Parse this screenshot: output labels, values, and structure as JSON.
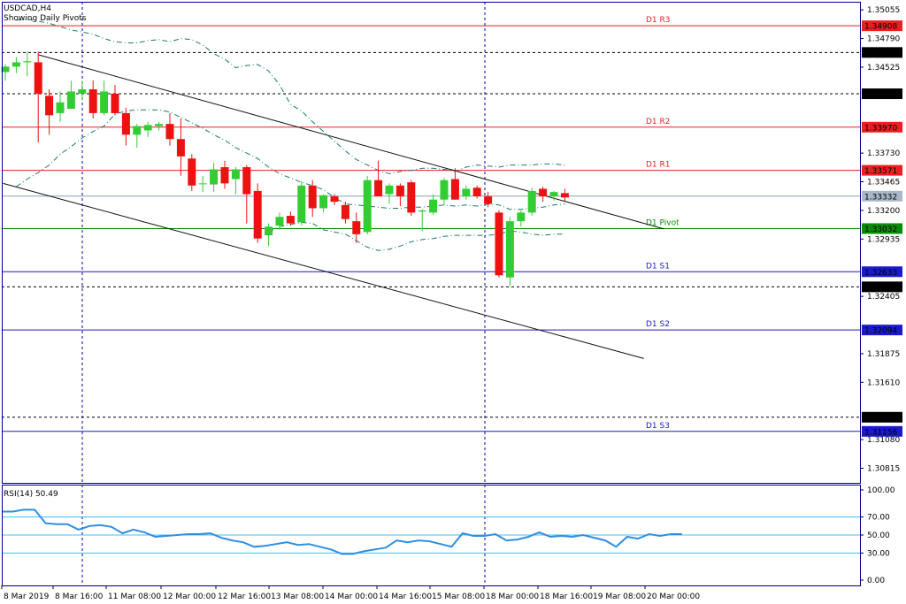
{
  "header": {
    "symbol": "USDCAD,H4",
    "subtitle": "Showing Daily Pivots"
  },
  "colors": {
    "up": "#33cc33",
    "down": "#ee1111",
    "frame": "#000080",
    "resistance": "#e82020",
    "support": "#1a1acc",
    "pivot": "#0a8a0a",
    "ma": "#1b7a6a",
    "rsi_line": "#2f8fdf",
    "rsi_level": "#40c0ff",
    "vline": "#0000aa"
  },
  "chart_data": [
    {
      "type": "candlestick",
      "title": "USDCAD,H4",
      "ylim": [
        1.3068,
        1.3513
      ],
      "y_ticks": [
        "1.35055",
        "1.34790",
        "1.34525",
        "1.33730",
        "1.33465",
        "1.33200",
        "1.32935",
        "1.32405",
        "1.31875",
        "1.31610",
        "1.31080",
        "1.30815"
      ],
      "levels": [
        {
          "name": "D1 R3",
          "value": 1.34908,
          "label": "1.34908",
          "kind": "resistance"
        },
        {
          "name": "D1 R2",
          "value": 1.3397,
          "label": "1.33970",
          "kind": "resistance"
        },
        {
          "name": "D1 R1",
          "value": 1.33571,
          "label": "1.33571",
          "kind": "resistance"
        },
        {
          "name": "D1 Pivot",
          "value": 1.33032,
          "label": "1.33032",
          "kind": "pivot"
        },
        {
          "name": "D1 S1",
          "value": 1.32633,
          "label": "1.32633",
          "kind": "support"
        },
        {
          "name": "D1 S2",
          "value": 1.32094,
          "label": "1.32094",
          "kind": "support"
        },
        {
          "name": "D1 S3",
          "value": 1.31156,
          "label": "1.31156",
          "kind": "support"
        }
      ],
      "dotted_levels": [
        {
          "value": 1.34661,
          "label": "1.34661"
        },
        {
          "value": 1.34279,
          "label": "1.34279"
        },
        {
          "value": 1.32493,
          "label": "1.32493"
        },
        {
          "value": 1.31287,
          "label": "1.31287"
        }
      ],
      "current_price": {
        "value": 1.33332,
        "label": "1.33332"
      },
      "x_labels": [
        "8 Mar 2019",
        "8 Mar 16:00",
        "11 Mar 08:00",
        "12 Mar 00:00",
        "12 Mar 16:00",
        "13 Mar 08:00",
        "14 Mar 00:00",
        "14 Mar 16:00",
        "15 Mar 08:00",
        "18 Mar 00:00",
        "18 Mar 16:00",
        "19 Mar 08:00",
        "20 Mar 00:00"
      ],
      "candles": [
        {
          "o": 1.3448,
          "h": 1.3455,
          "l": 1.344,
          "c": 1.3453
        },
        {
          "o": 1.3453,
          "h": 1.3462,
          "l": 1.3447,
          "c": 1.3457
        },
        {
          "o": 1.3457,
          "h": 1.3467,
          "l": 1.3444,
          "c": 1.3458
        },
        {
          "o": 1.3457,
          "h": 1.3467,
          "l": 1.3383,
          "c": 1.3428
        },
        {
          "o": 1.3426,
          "h": 1.3432,
          "l": 1.339,
          "c": 1.3408
        },
        {
          "o": 1.341,
          "h": 1.343,
          "l": 1.3402,
          "c": 1.342
        },
        {
          "o": 1.3414,
          "h": 1.344,
          "l": 1.3414,
          "c": 1.343
        },
        {
          "o": 1.3428,
          "h": 1.344,
          "l": 1.3422,
          "c": 1.3432
        },
        {
          "o": 1.3432,
          "h": 1.344,
          "l": 1.3405,
          "c": 1.341
        },
        {
          "o": 1.341,
          "h": 1.344,
          "l": 1.3408,
          "c": 1.343
        },
        {
          "o": 1.3428,
          "h": 1.3436,
          "l": 1.3408,
          "c": 1.341
        },
        {
          "o": 1.341,
          "h": 1.3415,
          "l": 1.338,
          "c": 1.339
        },
        {
          "o": 1.339,
          "h": 1.34,
          "l": 1.3378,
          "c": 1.3398
        },
        {
          "o": 1.3394,
          "h": 1.3402,
          "l": 1.3388,
          "c": 1.3399
        },
        {
          "o": 1.3398,
          "h": 1.3402,
          "l": 1.3394,
          "c": 1.34
        },
        {
          "o": 1.34,
          "h": 1.341,
          "l": 1.338,
          "c": 1.3386
        },
        {
          "o": 1.3386,
          "h": 1.3405,
          "l": 1.3352,
          "c": 1.337
        },
        {
          "o": 1.3368,
          "h": 1.3372,
          "l": 1.3338,
          "c": 1.3343
        },
        {
          "o": 1.3345,
          "h": 1.3352,
          "l": 1.3337,
          "c": 1.3345
        },
        {
          "o": 1.3344,
          "h": 1.3364,
          "l": 1.3337,
          "c": 1.3358
        },
        {
          "o": 1.336,
          "h": 1.3366,
          "l": 1.334,
          "c": 1.3345
        },
        {
          "o": 1.3349,
          "h": 1.336,
          "l": 1.3335,
          "c": 1.3358
        },
        {
          "o": 1.336,
          "h": 1.3362,
          "l": 1.3308,
          "c": 1.3335
        },
        {
          "o": 1.3338,
          "h": 1.3345,
          "l": 1.329,
          "c": 1.3294
        },
        {
          "o": 1.3297,
          "h": 1.3308,
          "l": 1.3287,
          "c": 1.3305
        },
        {
          "o": 1.3306,
          "h": 1.3318,
          "l": 1.3302,
          "c": 1.3314
        },
        {
          "o": 1.3315,
          "h": 1.3319,
          "l": 1.3306,
          "c": 1.3308
        },
        {
          "o": 1.3309,
          "h": 1.3347,
          "l": 1.3306,
          "c": 1.3343
        },
        {
          "o": 1.3343,
          "h": 1.3348,
          "l": 1.3314,
          "c": 1.3322
        },
        {
          "o": 1.3322,
          "h": 1.3335,
          "l": 1.3318,
          "c": 1.3334
        },
        {
          "o": 1.3333,
          "h": 1.3335,
          "l": 1.3325,
          "c": 1.3328
        },
        {
          "o": 1.3325,
          "h": 1.3328,
          "l": 1.3308,
          "c": 1.3312
        },
        {
          "o": 1.331,
          "h": 1.3318,
          "l": 1.329,
          "c": 1.3298
        },
        {
          "o": 1.33,
          "h": 1.3352,
          "l": 1.3298,
          "c": 1.3348
        },
        {
          "o": 1.3348,
          "h": 1.3366,
          "l": 1.3333,
          "c": 1.3333
        },
        {
          "o": 1.3335,
          "h": 1.3345,
          "l": 1.3326,
          "c": 1.3343
        },
        {
          "o": 1.3343,
          "h": 1.3345,
          "l": 1.3324,
          "c": 1.3333
        },
        {
          "o": 1.3346,
          "h": 1.3348,
          "l": 1.3315,
          "c": 1.3318
        },
        {
          "o": 1.3319,
          "h": 1.3321,
          "l": 1.3301,
          "c": 1.332
        },
        {
          "o": 1.3318,
          "h": 1.3335,
          "l": 1.3316,
          "c": 1.333
        },
        {
          "o": 1.333,
          "h": 1.335,
          "l": 1.3325,
          "c": 1.3348
        },
        {
          "o": 1.3349,
          "h": 1.3359,
          "l": 1.333,
          "c": 1.333
        },
        {
          "o": 1.3333,
          "h": 1.3343,
          "l": 1.333,
          "c": 1.334
        },
        {
          "o": 1.3341,
          "h": 1.3343,
          "l": 1.3331,
          "c": 1.3333
        },
        {
          "o": 1.3333,
          "h": 1.3337,
          "l": 1.3323,
          "c": 1.3326
        },
        {
          "o": 1.3318,
          "h": 1.332,
          "l": 1.3258,
          "c": 1.326
        },
        {
          "o": 1.3258,
          "h": 1.3314,
          "l": 1.325,
          "c": 1.331
        },
        {
          "o": 1.331,
          "h": 1.332,
          "l": 1.3305,
          "c": 1.3318
        },
        {
          "o": 1.3318,
          "h": 1.3341,
          "l": 1.3315,
          "c": 1.3338
        },
        {
          "o": 1.334,
          "h": 1.3342,
          "l": 1.3328,
          "c": 1.3333
        },
        {
          "o": 1.3333,
          "h": 1.3338,
          "l": 1.3329,
          "c": 1.3337
        },
        {
          "o": 1.3336,
          "h": 1.334,
          "l": 1.3328,
          "c": 1.3332
        }
      ],
      "channel_lines": [
        {
          "from": [
            3,
            1.3464
          ],
          "to": [
            60,
            1.3303
          ]
        },
        {
          "from": [
            -0.2,
            1.3345
          ],
          "to": [
            58.2,
            1.3183
          ]
        }
      ],
      "envelopes": {
        "upper": [
          [
            1,
            1.3496
          ],
          [
            2,
            1.3497
          ],
          [
            3,
            1.3495
          ],
          [
            4,
            1.3493
          ],
          [
            5,
            1.349
          ],
          [
            6,
            1.3487
          ],
          [
            7,
            1.3485
          ],
          [
            8,
            1.3483
          ],
          [
            9,
            1.3479
          ],
          [
            10,
            1.3476
          ],
          [
            11,
            1.3475
          ],
          [
            12,
            1.3475
          ],
          [
            13,
            1.3477
          ],
          [
            14,
            1.3478
          ],
          [
            15,
            1.3476
          ],
          [
            16,
            1.3479
          ],
          [
            17,
            1.3478
          ],
          [
            18,
            1.3473
          ],
          [
            19,
            1.3465
          ],
          [
            20,
            1.346
          ],
          [
            21,
            1.3452
          ],
          [
            22,
            1.3454
          ],
          [
            23,
            1.3455
          ],
          [
            24,
            1.3449
          ],
          [
            25,
            1.3436
          ],
          [
            26,
            1.3418
          ],
          [
            27,
            1.3412
          ],
          [
            28,
            1.3402
          ],
          [
            29,
            1.3393
          ],
          [
            30,
            1.3384
          ],
          [
            31,
            1.3375
          ],
          [
            32,
            1.3367
          ],
          [
            33,
            1.3362
          ],
          [
            34,
            1.3357
          ],
          [
            35,
            1.3354
          ],
          [
            36,
            1.3356
          ],
          [
            37,
            1.3357
          ],
          [
            38,
            1.3359
          ],
          [
            39,
            1.3359
          ],
          [
            40,
            1.3358
          ],
          [
            41,
            1.3356
          ],
          [
            42,
            1.336
          ],
          [
            43,
            1.3362
          ],
          [
            44,
            1.3361
          ],
          [
            45,
            1.336
          ],
          [
            46,
            1.3362
          ],
          [
            47,
            1.3362
          ],
          [
            48,
            1.3362
          ],
          [
            49,
            1.3363
          ],
          [
            50,
            1.3363
          ],
          [
            51,
            1.3362
          ]
        ],
        "middle": [
          [
            1,
            1.3342
          ],
          [
            2,
            1.3349
          ],
          [
            3,
            1.3355
          ],
          [
            4,
            1.3362
          ],
          [
            5,
            1.3372
          ],
          [
            6,
            1.3379
          ],
          [
            7,
            1.3387
          ],
          [
            8,
            1.3393
          ],
          [
            9,
            1.3398
          ],
          [
            10,
            1.3409
          ],
          [
            11,
            1.3412
          ],
          [
            12,
            1.3413
          ],
          [
            13,
            1.3413
          ],
          [
            14,
            1.3413
          ],
          [
            15,
            1.3411
          ],
          [
            16,
            1.3406
          ],
          [
            17,
            1.3401
          ],
          [
            18,
            1.3396
          ],
          [
            19,
            1.339
          ],
          [
            20,
            1.3385
          ],
          [
            21,
            1.3378
          ],
          [
            22,
            1.3373
          ],
          [
            23,
            1.3368
          ],
          [
            24,
            1.336
          ],
          [
            25,
            1.3354
          ],
          [
            26,
            1.335
          ],
          [
            27,
            1.3346
          ],
          [
            28,
            1.3343
          ],
          [
            29,
            1.3339
          ],
          [
            30,
            1.3332
          ],
          [
            31,
            1.3326
          ],
          [
            32,
            1.3325
          ],
          [
            33,
            1.3324
          ],
          [
            34,
            1.3323
          ],
          [
            35,
            1.3322
          ],
          [
            36,
            1.3322
          ],
          [
            37,
            1.3323
          ],
          [
            38,
            1.3323
          ],
          [
            39,
            1.3324
          ],
          [
            40,
            1.3325
          ],
          [
            41,
            1.3324
          ],
          [
            42,
            1.3325
          ],
          [
            43,
            1.3324
          ],
          [
            44,
            1.3326
          ],
          [
            45,
            1.3325
          ],
          [
            46,
            1.3321
          ],
          [
            47,
            1.3321
          ],
          [
            48,
            1.3322
          ],
          [
            49,
            1.3323
          ],
          [
            50,
            1.3325
          ],
          [
            51,
            1.3326
          ]
        ],
        "lower": [
          [
            24,
            1.33
          ],
          [
            25,
            1.3305
          ],
          [
            26,
            1.3307
          ],
          [
            27,
            1.3309
          ],
          [
            28,
            1.3308
          ],
          [
            29,
            1.3302
          ],
          [
            30,
            1.33
          ],
          [
            31,
            1.3298
          ],
          [
            32,
            1.3292
          ],
          [
            33,
            1.3286
          ],
          [
            34,
            1.3283
          ],
          [
            35,
            1.3284
          ],
          [
            36,
            1.3287
          ],
          [
            37,
            1.3291
          ],
          [
            38,
            1.3293
          ],
          [
            39,
            1.3294
          ],
          [
            40,
            1.3296
          ],
          [
            41,
            1.3297
          ],
          [
            42,
            1.3297
          ],
          [
            43,
            1.3297
          ],
          [
            44,
            1.3297
          ],
          [
            45,
            1.3298
          ],
          [
            46,
            1.3301
          ],
          [
            47,
            1.33
          ],
          [
            48,
            1.3298
          ],
          [
            49,
            1.3297
          ],
          [
            50,
            1.3298
          ],
          [
            51,
            1.3298
          ]
        ]
      }
    },
    {
      "type": "line",
      "title": "RSI(14) 50.49",
      "ylim": [
        0,
        100
      ],
      "y_ticks": [
        "100.00",
        "70.00",
        "50.00",
        "30.00",
        "0.00"
      ],
      "levels": [
        70,
        50,
        30
      ],
      "series": [
        {
          "values": [
            76,
            76,
            78,
            78,
            63,
            62,
            62,
            56,
            60,
            61,
            59,
            52,
            56,
            53,
            48,
            49,
            50,
            51,
            51,
            52,
            47,
            44,
            42,
            37,
            38,
            40,
            42,
            39,
            40,
            37,
            34,
            29,
            29,
            32,
            34,
            36,
            44,
            42,
            44,
            43,
            40,
            37,
            52,
            49,
            49,
            51,
            44,
            45,
            48,
            53,
            48,
            49,
            48,
            50,
            47,
            44,
            37,
            48,
            46,
            51,
            49,
            51,
            51
          ]
        }
      ]
    }
  ]
}
